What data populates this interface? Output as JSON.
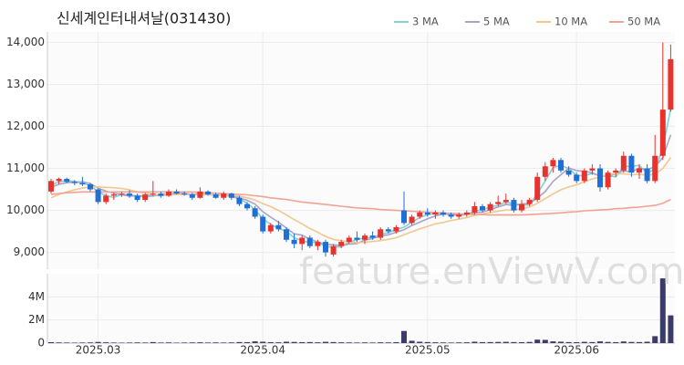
{
  "chart_data": {
    "type": "candlestick",
    "title": "신세계인터내셔날(031430)",
    "categories": [
      null,
      null,
      null,
      null,
      null,
      null,
      "2025.03",
      null,
      null,
      null,
      null,
      null,
      null,
      null,
      null,
      null,
      null,
      null,
      null,
      null,
      null,
      null,
      null,
      null,
      null,
      null,
      null,
      "2025.04",
      null,
      null,
      null,
      null,
      null,
      null,
      null,
      null,
      null,
      null,
      null,
      null,
      null,
      null,
      null,
      null,
      null,
      null,
      null,
      null,
      "2025.05",
      null,
      null,
      null,
      null,
      null,
      null,
      null,
      null,
      null,
      null,
      null,
      null,
      null,
      null,
      null,
      null,
      null,
      null,
      "2025.06",
      null,
      null,
      null,
      null,
      null,
      null,
      null,
      null,
      null,
      null,
      null,
      null
    ],
    "open": [
      10450,
      10700,
      10750,
      10680,
      10650,
      10620,
      10500,
      10200,
      10350,
      10380,
      10400,
      10350,
      10250,
      10380,
      10400,
      10350,
      10450,
      10400,
      10380,
      10300,
      10450,
      10380,
      10300,
      10400,
      10300,
      10150,
      10050,
      9850,
      9500,
      9650,
      9550,
      9300,
      9200,
      9350,
      9150,
      9250,
      8950,
      9150,
      9250,
      9350,
      9300,
      9400,
      9350,
      9550,
      9500,
      10000,
      9700,
      9850,
      9950,
      9900,
      9950,
      9900,
      9850,
      9900,
      9950,
      10100,
      10000,
      10150,
      10200,
      10250,
      10000,
      10150,
      10250,
      10800,
      11050,
      11200,
      10950,
      10850,
      10700,
      10950,
      11000,
      10550,
      10900,
      10950,
      11300,
      10900,
      11000,
      10700,
      11300,
      12400
    ],
    "high": [
      10750,
      10780,
      10780,
      10720,
      10800,
      10650,
      10520,
      10400,
      10420,
      10450,
      10480,
      10400,
      10420,
      10700,
      10450,
      10500,
      10500,
      10450,
      10420,
      10550,
      10480,
      10420,
      10450,
      10420,
      10350,
      10200,
      10100,
      9900,
      9700,
      9750,
      9600,
      9450,
      9400,
      9400,
      9300,
      9300,
      9200,
      9300,
      9400,
      9500,
      9450,
      9500,
      9600,
      9600,
      9650,
      10450,
      9900,
      10000,
      10050,
      10000,
      10000,
      9950,
      9950,
      10000,
      10200,
      10150,
      10200,
      10350,
      10400,
      10300,
      10250,
      10300,
      10900,
      11150,
      11250,
      11250,
      11050,
      10900,
      11000,
      11100,
      11100,
      10950,
      11000,
      11400,
      11350,
      11100,
      11100,
      11800,
      14000,
      13950
    ],
    "low": [
      10400,
      10620,
      10650,
      10600,
      10580,
      10450,
      10150,
      10150,
      10250,
      10320,
      10300,
      10200,
      10200,
      10350,
      10300,
      10320,
      10380,
      10350,
      10250,
      10280,
      10350,
      10280,
      10250,
      10250,
      10100,
      10000,
      9800,
      9450,
      9450,
      9500,
      9250,
      9100,
      9050,
      9100,
      9050,
      8900,
      8900,
      9100,
      9200,
      9250,
      9200,
      9300,
      9300,
      9450,
      9450,
      9650,
      9650,
      9800,
      9850,
      9800,
      9850,
      9800,
      9800,
      9850,
      9900,
      9950,
      9950,
      10100,
      10150,
      9950,
      9950,
      10100,
      10200,
      10700,
      10900,
      10900,
      10800,
      10650,
      10650,
      10850,
      10450,
      10500,
      10800,
      10900,
      10800,
      10750,
      10650,
      10650,
      11200,
      12350
    ],
    "close": [
      10700,
      10750,
      10680,
      10650,
      10620,
      10500,
      10200,
      10350,
      10380,
      10400,
      10350,
      10250,
      10380,
      10400,
      10350,
      10450,
      10400,
      10380,
      10300,
      10450,
      10380,
      10300,
      10400,
      10300,
      10150,
      10050,
      9850,
      9500,
      9650,
      9550,
      9300,
      9200,
      9350,
      9150,
      9250,
      9000,
      9150,
      9250,
      9350,
      9300,
      9400,
      9350,
      9550,
      9500,
      9600,
      9700,
      9850,
      9950,
      9900,
      9950,
      9900,
      9850,
      9900,
      9950,
      10100,
      10000,
      10150,
      10200,
      10250,
      10000,
      10150,
      10250,
      10800,
      11050,
      11200,
      10950,
      10850,
      10700,
      10950,
      11000,
      10550,
      10900,
      10950,
      11300,
      10900,
      11000,
      10700,
      11300,
      12400,
      13600
    ],
    "up_color": "#e8322e",
    "down_color": "#1f6fd6",
    "series": [
      {
        "name": "3 MA",
        "color": "#7fd3d3",
        "values": [
          10600,
          10680,
          10710,
          10690,
          10650,
          10590,
          10440,
          10350,
          10310,
          10380,
          10380,
          10330,
          10330,
          10340,
          10380,
          10400,
          10400,
          10410,
          10360,
          10380,
          10380,
          10380,
          10360,
          10330,
          10280,
          10170,
          10020,
          9800,
          9670,
          9570,
          9500,
          9350,
          9280,
          9230,
          9250,
          9130,
          9130,
          9130,
          9250,
          9300,
          9350,
          9350,
          9430,
          9470,
          9550,
          9600,
          9720,
          9830,
          9900,
          9930,
          9920,
          9900,
          9880,
          9900,
          9980,
          10020,
          10080,
          10120,
          10200,
          10150,
          10130,
          10130,
          10400,
          10700,
          11020,
          11070,
          11000,
          10830,
          10830,
          10880,
          10830,
          10820,
          10800,
          11050,
          11050,
          11070,
          10870,
          11000,
          11470,
          12430
        ]
      },
      {
        "name": "5 MA",
        "color": "#a9a3cb",
        "values": [
          10550,
          10620,
          10660,
          10670,
          10680,
          10640,
          10530,
          10460,
          10410,
          10370,
          10340,
          10350,
          10350,
          10360,
          10350,
          10370,
          10400,
          10400,
          10380,
          10400,
          10380,
          10360,
          10370,
          10350,
          10300,
          10240,
          10150,
          9970,
          9840,
          9720,
          9580,
          9440,
          9410,
          9310,
          9250,
          9190,
          9180,
          9160,
          9200,
          9210,
          9290,
          9330,
          9390,
          9420,
          9480,
          9540,
          9640,
          9720,
          9800,
          9870,
          9910,
          9910,
          9900,
          9910,
          9940,
          9960,
          10020,
          10080,
          10140,
          10120,
          10150,
          10170,
          10290,
          10450,
          10690,
          10850,
          11010,
          10950,
          10930,
          10900,
          10810,
          10820,
          10870,
          10940,
          10920,
          11010,
          10970,
          11040,
          11260,
          11800
        ]
      },
      {
        "name": "10 MA",
        "color": "#f1c78f",
        "values": [
          10300,
          10380,
          10440,
          10490,
          10530,
          10560,
          10560,
          10550,
          10540,
          10520,
          10490,
          10440,
          10410,
          10380,
          10360,
          10360,
          10380,
          10380,
          10370,
          10370,
          10370,
          10370,
          10370,
          10360,
          10340,
          10300,
          10250,
          10160,
          10090,
          10000,
          9890,
          9780,
          9680,
          9570,
          9480,
          9380,
          9310,
          9280,
          9250,
          9230,
          9240,
          9260,
          9280,
          9310,
          9350,
          9420,
          9490,
          9560,
          9620,
          9680,
          9710,
          9760,
          9790,
          9830,
          9880,
          9920,
          9950,
          9980,
          10010,
          10010,
          10040,
          10080,
          10170,
          10280,
          10390,
          10490,
          10560,
          10610,
          10680,
          10750,
          10790,
          10860,
          10870,
          10870,
          10850,
          10860,
          10840,
          10860,
          11000,
          11260
        ]
      },
      {
        "name": "50 MA",
        "color": "#f2a293",
        "values": [
          10380,
          10400,
          10420,
          10430,
          10440,
          10440,
          10440,
          10440,
          10440,
          10440,
          10440,
          10440,
          10440,
          10440,
          10440,
          10440,
          10440,
          10440,
          10440,
          10430,
          10420,
          10410,
          10400,
          10390,
          10380,
          10370,
          10350,
          10330,
          10300,
          10280,
          10260,
          10230,
          10200,
          10180,
          10160,
          10140,
          10120,
          10100,
          10080,
          10060,
          10050,
          10040,
          10020,
          10010,
          10000,
          9990,
          9980,
          9970,
          9960,
          9950,
          9940,
          9930,
          9920,
          9910,
          9900,
          9900,
          9890,
          9890,
          9890,
          9890,
          9890,
          9900,
          9910,
          9920,
          9930,
          9940,
          9960,
          9970,
          9990,
          10000,
          10010,
          10020,
          10040,
          10050,
          10070,
          10080,
          10100,
          10120,
          10170,
          10260
        ]
      }
    ],
    "ylim": [
      8600,
      14250
    ],
    "yticks": [
      {
        "value": 9000,
        "label": "9,000"
      },
      {
        "value": 10000,
        "label": "10,000"
      },
      {
        "value": 11000,
        "label": "11,000"
      },
      {
        "value": 12000,
        "label": "12,000"
      },
      {
        "value": 13000,
        "label": "13,000"
      },
      {
        "value": 14000,
        "label": "14,000"
      }
    ],
    "grid": true,
    "volume": [
      80000,
      60000,
      50000,
      40000,
      50000,
      60000,
      100000,
      70000,
      50000,
      40000,
      50000,
      60000,
      50000,
      90000,
      50000,
      60000,
      40000,
      50000,
      60000,
      70000,
      50000,
      60000,
      50000,
      60000,
      90000,
      80000,
      150000,
      120000,
      80000,
      70000,
      120000,
      100000,
      80000,
      90000,
      70000,
      110000,
      90000,
      70000,
      60000,
      50000,
      60000,
      50000,
      70000,
      60000,
      80000,
      1050000,
      200000,
      120000,
      90000,
      70000,
      60000,
      50000,
      60000,
      70000,
      120000,
      80000,
      90000,
      100000,
      110000,
      90000,
      80000,
      100000,
      300000,
      280000,
      150000,
      120000,
      90000,
      80000,
      110000,
      90000,
      150000,
      100000,
      80000,
      140000,
      100000,
      90000,
      120000,
      600000,
      5600000,
      2400000
    ],
    "volume_color": "#3b3b6a",
    "volume_ylim": [
      0,
      6000000
    ],
    "volume_yticks": [
      0,
      {
        "value": 2000000,
        "label": "2M"
      },
      {
        "value": 4000000,
        "label": "4M"
      }
    ]
  },
  "watermark": "feature.enViewV.com"
}
